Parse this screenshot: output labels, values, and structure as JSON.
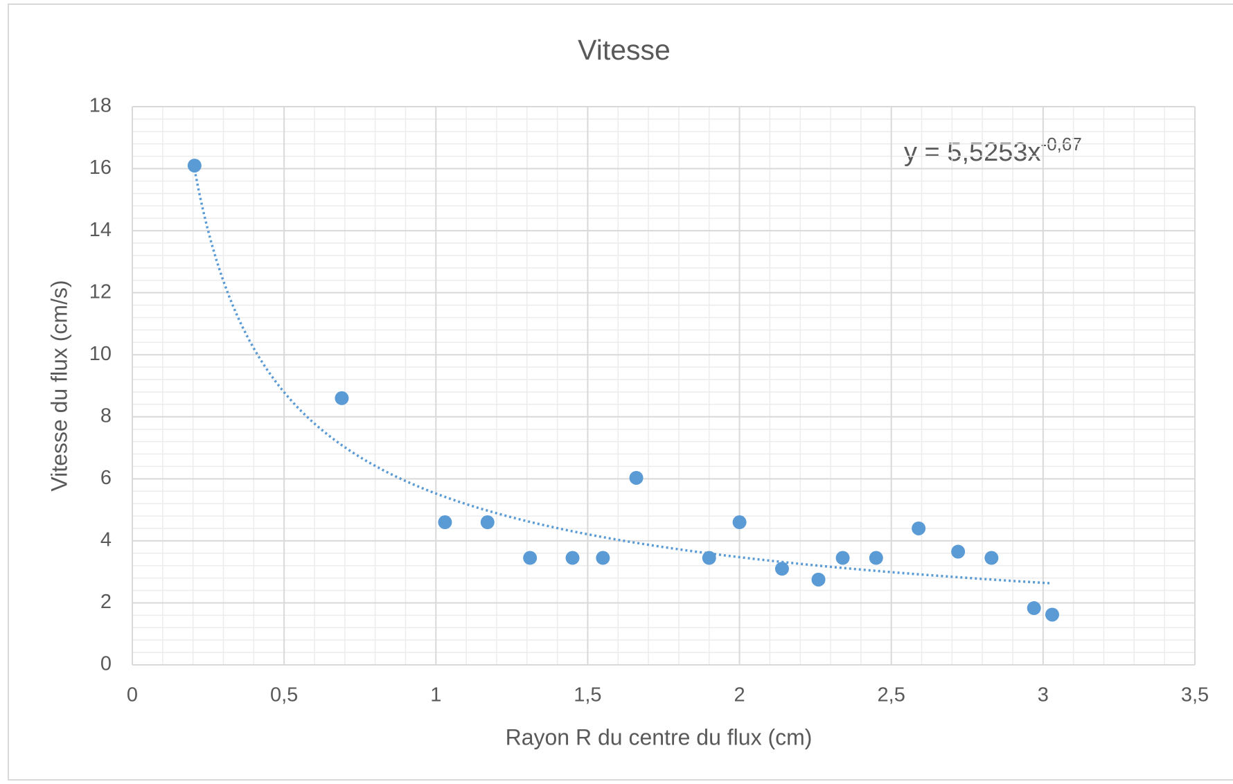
{
  "chart_data": {
    "type": "scatter",
    "title": "Vitesse",
    "x_label": "Rayon R du centre du flux (cm)",
    "y_label": "Vitesse du flux  (cm/s)",
    "color": "#5b9bd5",
    "grid": true,
    "minor_grid": {
      "x": 0.1,
      "y": 0.4
    },
    "x": [
      0.205,
      0.69,
      1.03,
      1.17,
      1.31,
      1.45,
      1.55,
      1.66,
      1.9,
      2.0,
      2.14,
      2.26,
      2.34,
      2.45,
      2.59,
      2.72,
      2.83,
      2.97,
      3.03
    ],
    "values": [
      16.1,
      8.6,
      4.6,
      4.6,
      3.45,
      3.45,
      3.45,
      6.03,
      3.45,
      4.6,
      3.1,
      2.75,
      3.45,
      3.45,
      4.4,
      3.65,
      3.45,
      1.83,
      1.62
    ],
    "trendline": {
      "type": "power",
      "coefficient": 5.5253,
      "exponent": -0.67,
      "equation": "y = 5,5253x",
      "equation_exponent": "-0,67"
    },
    "xlim": [
      0,
      3.5
    ],
    "ylim": [
      0,
      18
    ],
    "xticks": [
      0,
      {
        "value": 0.5,
        "label": "0,5"
      },
      1,
      {
        "value": 1.5,
        "label": "1,5"
      },
      2,
      {
        "value": 2.5,
        "label": "2,5"
      },
      3,
      {
        "value": 3.5,
        "label": "3,5"
      }
    ],
    "yticks": [
      0,
      2,
      4,
      6,
      8,
      10,
      12,
      14,
      16,
      18
    ]
  }
}
